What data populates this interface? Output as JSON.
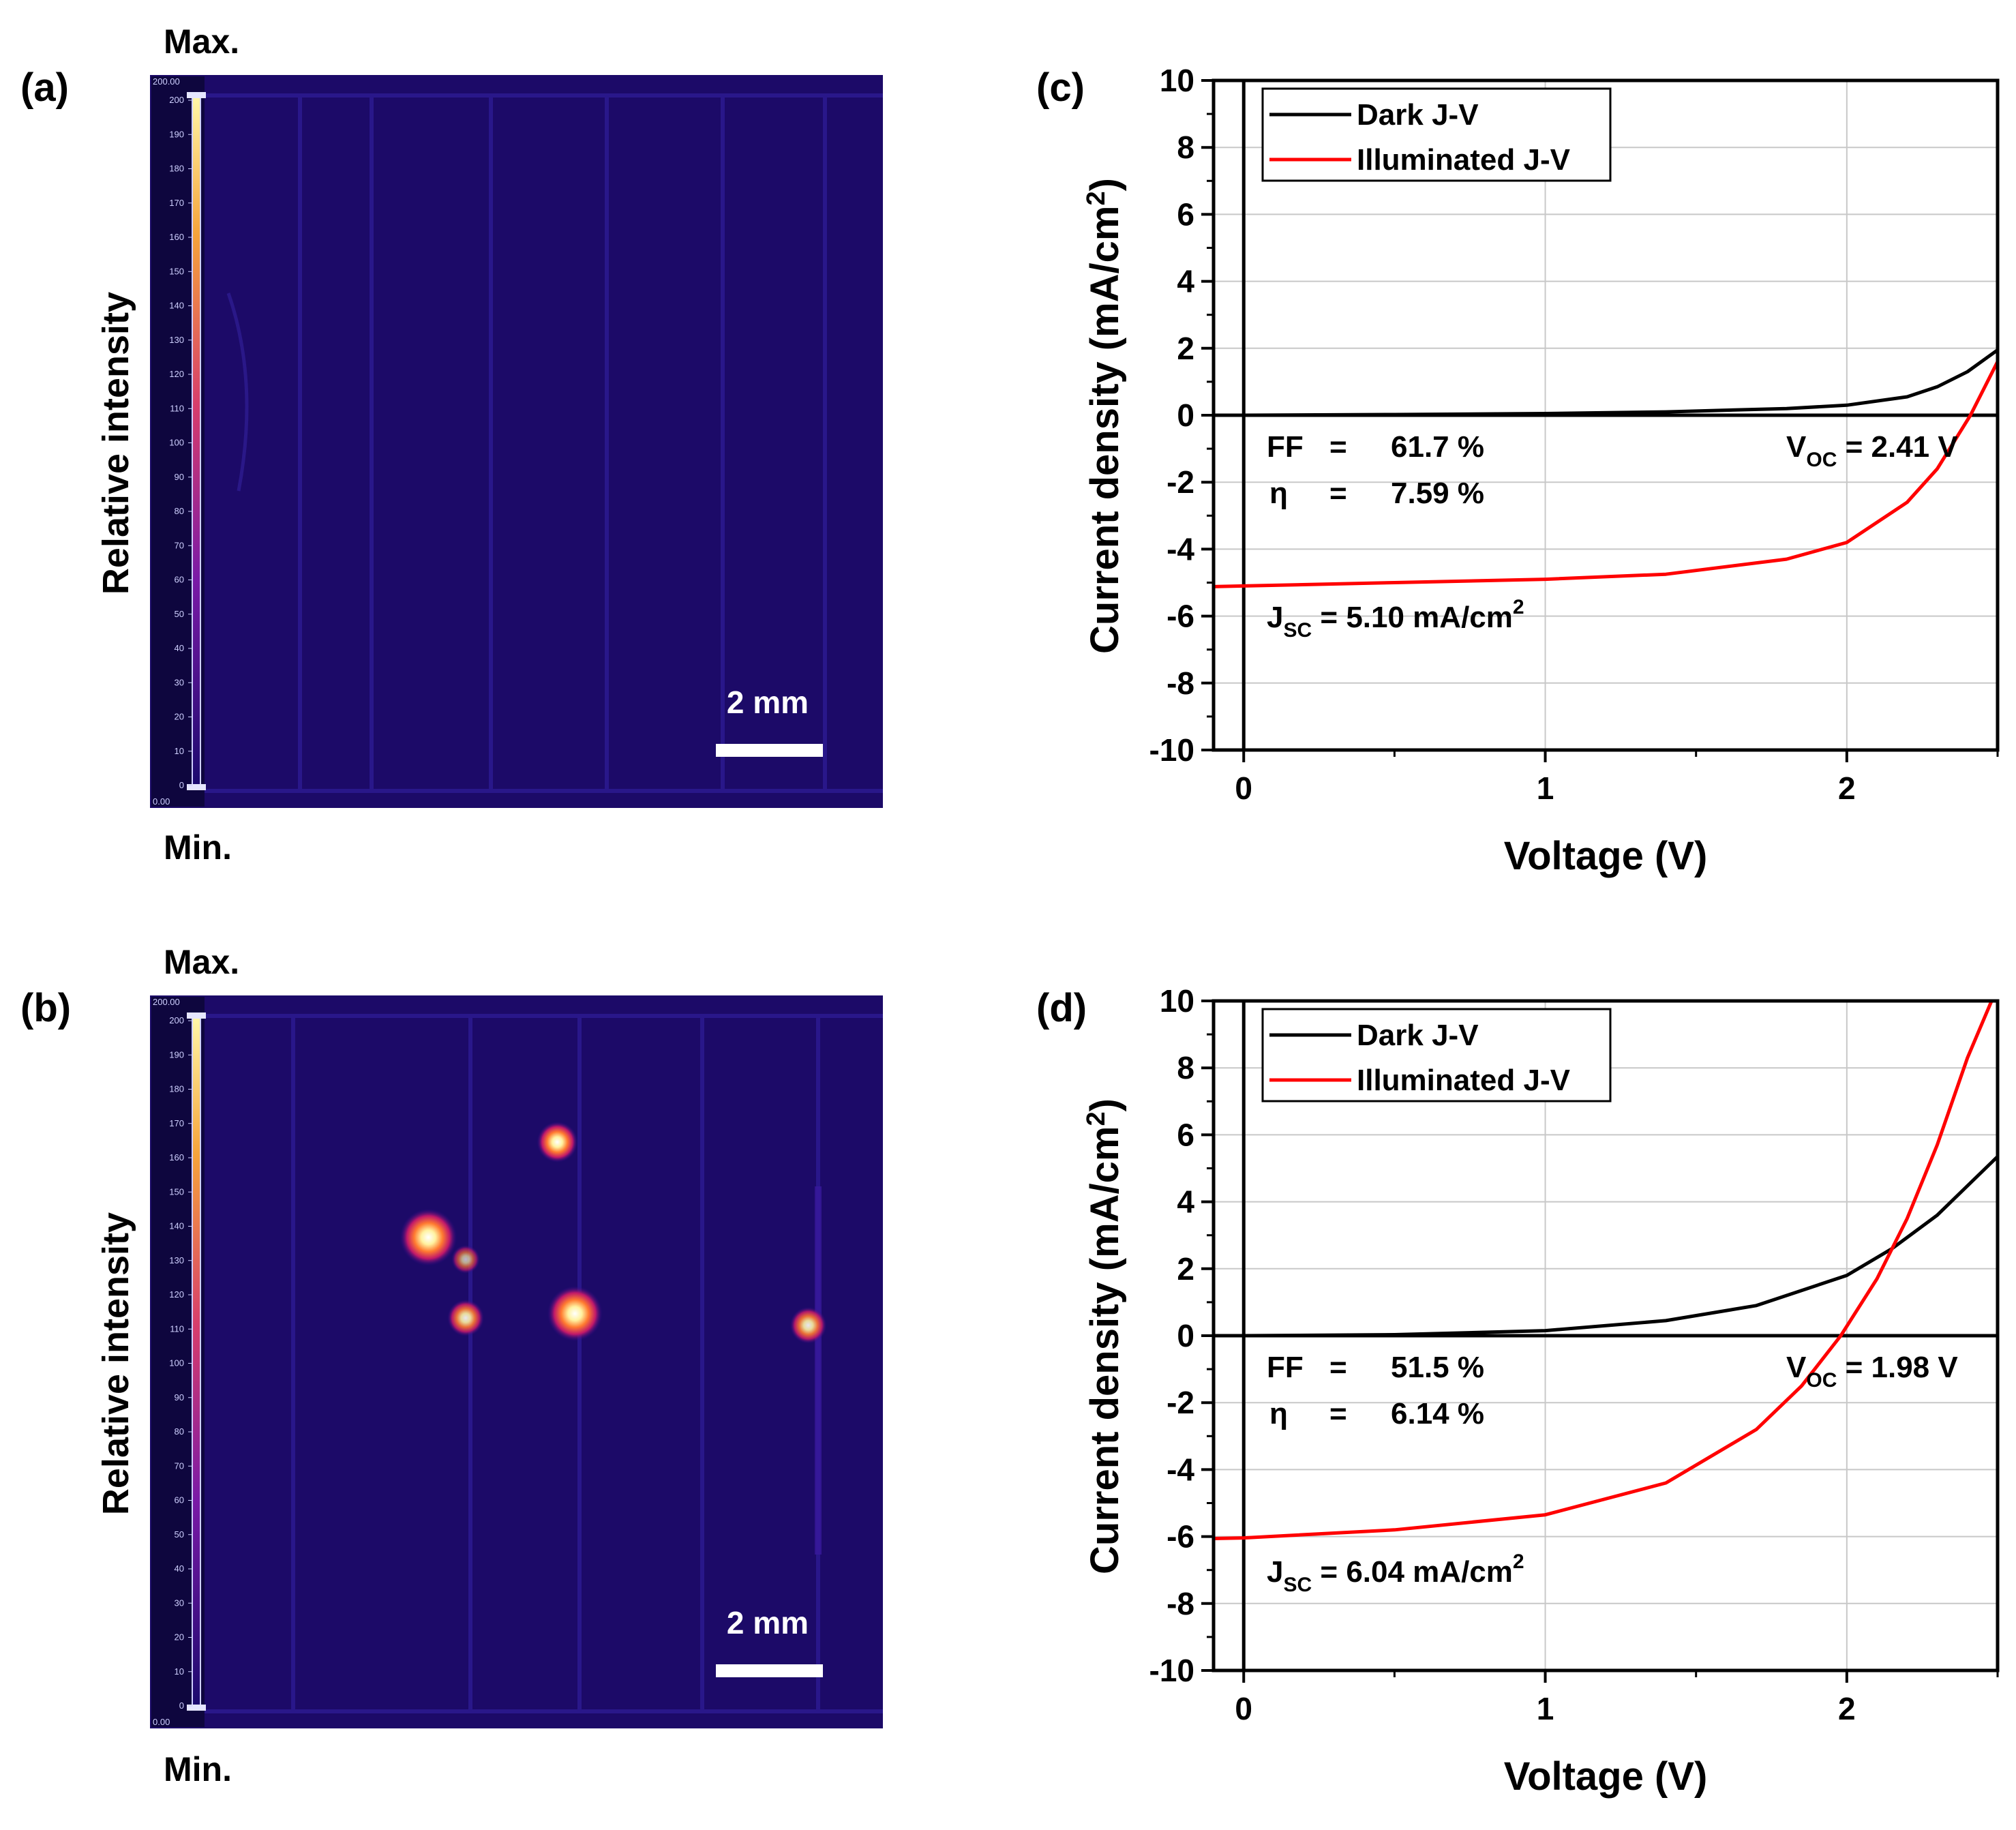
{
  "el_panels": [
    {
      "label": "(a)",
      "max_label": "Max.",
      "min_label": "Min.",
      "ylabel": "Relative intensity",
      "scale_bar": "2 mm",
      "colorbar_top": "200.00",
      "colorbar_bottom": "0.00",
      "colorbar_ticks": [
        "200",
        "190",
        "180",
        "170",
        "160",
        "150",
        "140",
        "130",
        "120",
        "110",
        "100",
        "90",
        "80",
        "70",
        "60",
        "50",
        "40",
        "30",
        "20",
        "10",
        "0"
      ],
      "hotspots": []
    },
    {
      "label": "(b)",
      "max_label": "Max.",
      "min_label": "Min.",
      "ylabel": "Relative intensity",
      "scale_bar": "2 mm",
      "colorbar_top": "200.00",
      "colorbar_bottom": "0.00",
      "colorbar_ticks": [
        "200",
        "190",
        "180",
        "170",
        "160",
        "150",
        "140",
        "130",
        "120",
        "110",
        "100",
        "90",
        "80",
        "70",
        "60",
        "50",
        "40",
        "30",
        "20",
        "10",
        "0"
      ],
      "hotspots": [
        {
          "u": 0.33,
          "v": 0.33,
          "intensity": 1.0
        },
        {
          "u": 0.546,
          "v": 0.434,
          "intensity": 0.95
        },
        {
          "u": 0.52,
          "v": 0.2,
          "intensity": 0.6
        },
        {
          "u": 0.385,
          "v": 0.44,
          "intensity": 0.5
        },
        {
          "u": 0.89,
          "v": 0.45,
          "intensity": 0.5
        },
        {
          "u": 0.385,
          "v": 0.36,
          "intensity": 0.3
        }
      ]
    }
  ],
  "chart_data": [
    {
      "type": "line",
      "panel": "(c)",
      "xlabel": "Voltage (V)",
      "ylabel": "Current density (mA/cm²)",
      "xlim": [
        -0.1,
        2.5
      ],
      "ylim": [
        -10,
        10
      ],
      "xticks": [
        "0",
        "1",
        "2"
      ],
      "yticks": [
        "-10",
        "-8",
        "-6",
        "-4",
        "-2",
        "0",
        "2",
        "4",
        "6",
        "8",
        "10"
      ],
      "grid": true,
      "legend_position": "top-left",
      "series": [
        {
          "name": "Dark J-V",
          "color": "#000000",
          "x": [
            -0.1,
            0.0,
            0.5,
            1.0,
            1.4,
            1.8,
            2.0,
            2.2,
            2.3,
            2.4,
            2.5
          ],
          "y": [
            0.0,
            0.0,
            0.02,
            0.05,
            0.1,
            0.2,
            0.3,
            0.55,
            0.85,
            1.3,
            1.95
          ]
        },
        {
          "name": "Illuminated J-V",
          "color": "#ff0000",
          "x": [
            -0.1,
            0.0,
            0.5,
            1.0,
            1.4,
            1.8,
            2.0,
            2.2,
            2.3,
            2.41,
            2.5
          ],
          "y": [
            -5.12,
            -5.1,
            -5.0,
            -4.9,
            -4.75,
            -4.3,
            -3.8,
            -2.6,
            -1.6,
            0.0,
            1.6
          ]
        }
      ],
      "annotations": {
        "ff_label": "FF",
        "ff_eq": "=",
        "ff_value": "61.7 %",
        "eta_label": "η",
        "eta_eq": "=",
        "eta_value": "7.59 %",
        "voc_main": "V",
        "voc_sub": "OC",
        "voc_value": " = 2.41 V",
        "jsc_main": "J",
        "jsc_sub": "SC",
        "jsc_value": " = 5.10 mA/cm",
        "jsc_sup": "2"
      }
    },
    {
      "type": "line",
      "panel": "(d)",
      "xlabel": "Voltage (V)",
      "ylabel": "Current density (mA/cm²)",
      "xlim": [
        -0.1,
        2.5
      ],
      "ylim": [
        -10,
        10
      ],
      "xticks": [
        "0",
        "1",
        "2"
      ],
      "yticks": [
        "-10",
        "-8",
        "-6",
        "-4",
        "-2",
        "0",
        "2",
        "4",
        "6",
        "8",
        "10"
      ],
      "grid": true,
      "legend_position": "top-left",
      "series": [
        {
          "name": "Dark J-V",
          "color": "#000000",
          "x": [
            -0.1,
            0.0,
            0.5,
            1.0,
            1.4,
            1.7,
            2.0,
            2.15,
            2.3,
            2.5
          ],
          "y": [
            0.0,
            0.0,
            0.03,
            0.15,
            0.45,
            0.9,
            1.8,
            2.6,
            3.6,
            5.35
          ]
        },
        {
          "name": "Illuminated J-V",
          "color": "#ff0000",
          "x": [
            -0.1,
            0.0,
            0.5,
            1.0,
            1.4,
            1.7,
            1.85,
            1.98,
            2.1,
            2.2,
            2.3,
            2.4,
            2.48
          ],
          "y": [
            -6.06,
            -6.04,
            -5.8,
            -5.35,
            -4.4,
            -2.8,
            -1.5,
            0.0,
            1.7,
            3.5,
            5.7,
            8.3,
            10.0
          ]
        }
      ],
      "annotations": {
        "ff_label": "FF",
        "ff_eq": "=",
        "ff_value": "51.5 %",
        "eta_label": "η",
        "eta_eq": "=",
        "eta_value": "6.14 %",
        "voc_main": "V",
        "voc_sub": "OC",
        "voc_value": " = 1.98 V",
        "jsc_main": "J",
        "jsc_sub": "SC",
        "jsc_value": " = 6.04 mA/cm",
        "jsc_sup": "2"
      }
    }
  ]
}
